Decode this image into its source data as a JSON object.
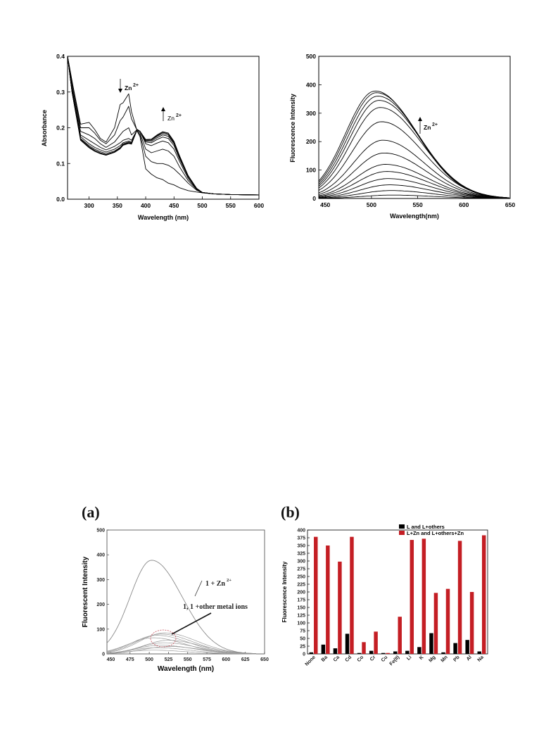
{
  "chart_data": [
    {
      "id": "absorbance",
      "type": "line",
      "xlabel": "Wavelength (nm)",
      "ylabel": "Absorbance",
      "xlim": [
        262,
        600
      ],
      "ylim": [
        0,
        0.4
      ],
      "xticks": [
        300,
        350,
        400,
        450,
        500,
        550,
        600
      ],
      "yticks": [
        0.0,
        0.1,
        0.2,
        0.3,
        0.4
      ],
      "ytick_labels": [
        "0.0",
        "0.1",
        "0.2",
        "0.3",
        "0.4"
      ],
      "annotations": [
        {
          "text": "Zn",
          "sup": "2+",
          "arrow": "down"
        },
        {
          "text": "Zn",
          "sup": "2+",
          "arrow": "up"
        }
      ],
      "series": [
        {
          "x": [
            262,
            270,
            285,
            300,
            310,
            320,
            330,
            345,
            355,
            360,
            370,
            375,
            385,
            390,
            400,
            410,
            420,
            430,
            440,
            450,
            460,
            475,
            490,
            500,
            520,
            550,
            600
          ],
          "values": [
            0.4,
            0.33,
            0.21,
            0.215,
            0.195,
            0.17,
            0.16,
            0.2,
            0.265,
            0.27,
            0.295,
            0.245,
            0.19,
            0.175,
            0.085,
            0.07,
            0.06,
            0.055,
            0.045,
            0.04,
            0.032,
            0.024,
            0.02,
            0.018,
            0.015,
            0.013,
            0.012
          ]
        },
        {
          "x": [
            262,
            270,
            285,
            300,
            310,
            320,
            330,
            345,
            355,
            360,
            370,
            375,
            385,
            390,
            400,
            410,
            420,
            430,
            440,
            450,
            460,
            475,
            490,
            500,
            520,
            550,
            600
          ],
          "values": [
            0.4,
            0.33,
            0.2,
            0.2,
            0.185,
            0.165,
            0.155,
            0.18,
            0.22,
            0.23,
            0.26,
            0.225,
            0.192,
            0.18,
            0.12,
            0.105,
            0.1,
            0.1,
            0.095,
            0.085,
            0.07,
            0.045,
            0.025,
            0.018,
            0.015,
            0.013,
            0.012
          ]
        },
        {
          "x": [
            262,
            270,
            285,
            300,
            310,
            320,
            330,
            345,
            355,
            360,
            370,
            375,
            385,
            390,
            400,
            410,
            420,
            430,
            440,
            450,
            460,
            475,
            490,
            500,
            520,
            550,
            600
          ],
          "values": [
            0.4,
            0.32,
            0.19,
            0.18,
            0.17,
            0.155,
            0.145,
            0.16,
            0.18,
            0.19,
            0.2,
            0.18,
            0.195,
            0.185,
            0.14,
            0.13,
            0.135,
            0.14,
            0.135,
            0.12,
            0.09,
            0.052,
            0.027,
            0.019,
            0.015,
            0.013,
            0.012
          ]
        },
        {
          "x": [
            262,
            270,
            285,
            300,
            310,
            320,
            330,
            345,
            355,
            360,
            370,
            375,
            385,
            390,
            400,
            410,
            420,
            430,
            440,
            450,
            460,
            475,
            490,
            500,
            520,
            550,
            600
          ],
          "values": [
            0.4,
            0.31,
            0.18,
            0.165,
            0.155,
            0.145,
            0.138,
            0.148,
            0.158,
            0.165,
            0.17,
            0.165,
            0.195,
            0.19,
            0.155,
            0.15,
            0.157,
            0.163,
            0.158,
            0.14,
            0.105,
            0.058,
            0.028,
            0.019,
            0.015,
            0.013,
            0.012
          ]
        },
        {
          "x": [
            262,
            270,
            285,
            300,
            310,
            320,
            330,
            345,
            355,
            360,
            370,
            375,
            385,
            390,
            400,
            410,
            420,
            430,
            440,
            450,
            460,
            475,
            490,
            500,
            520,
            550,
            600
          ],
          "values": [
            0.4,
            0.31,
            0.175,
            0.155,
            0.145,
            0.138,
            0.132,
            0.14,
            0.15,
            0.158,
            0.163,
            0.16,
            0.195,
            0.19,
            0.16,
            0.158,
            0.167,
            0.174,
            0.17,
            0.15,
            0.112,
            0.062,
            0.029,
            0.019,
            0.015,
            0.013,
            0.012
          ]
        },
        {
          "x": [
            262,
            270,
            285,
            300,
            310,
            320,
            330,
            345,
            355,
            360,
            370,
            375,
            385,
            390,
            400,
            410,
            420,
            430,
            440,
            450,
            460,
            475,
            490,
            500,
            520,
            550,
            600
          ],
          "values": [
            0.4,
            0.3,
            0.17,
            0.15,
            0.14,
            0.133,
            0.128,
            0.135,
            0.145,
            0.155,
            0.16,
            0.158,
            0.195,
            0.19,
            0.163,
            0.162,
            0.172,
            0.18,
            0.176,
            0.155,
            0.116,
            0.064,
            0.03,
            0.019,
            0.015,
            0.013,
            0.012
          ]
        },
        {
          "x": [
            262,
            270,
            285,
            300,
            310,
            320,
            330,
            345,
            355,
            360,
            370,
            375,
            385,
            390,
            400,
            410,
            420,
            430,
            440,
            450,
            460,
            475,
            490,
            500,
            520,
            550,
            600
          ],
          "values": [
            0.4,
            0.3,
            0.168,
            0.147,
            0.137,
            0.13,
            0.125,
            0.133,
            0.143,
            0.153,
            0.158,
            0.156,
            0.195,
            0.19,
            0.165,
            0.165,
            0.176,
            0.184,
            0.18,
            0.158,
            0.118,
            0.065,
            0.03,
            0.019,
            0.015,
            0.013,
            0.012
          ]
        },
        {
          "x": [
            262,
            270,
            285,
            300,
            310,
            320,
            330,
            345,
            355,
            360,
            370,
            375,
            385,
            390,
            400,
            410,
            420,
            430,
            440,
            450,
            460,
            475,
            490,
            500,
            520,
            550,
            600
          ],
          "values": [
            0.4,
            0.3,
            0.166,
            0.145,
            0.135,
            0.128,
            0.124,
            0.132,
            0.142,
            0.152,
            0.157,
            0.155,
            0.195,
            0.19,
            0.166,
            0.167,
            0.178,
            0.187,
            0.183,
            0.16,
            0.12,
            0.066,
            0.03,
            0.019,
            0.015,
            0.013,
            0.012
          ]
        },
        {
          "x": [
            262,
            270,
            285,
            300,
            310,
            320,
            330,
            345,
            355,
            360,
            370,
            375,
            385,
            390,
            400,
            410,
            420,
            430,
            440,
            450,
            460,
            475,
            490,
            500,
            520,
            550,
            600
          ],
          "values": [
            0.4,
            0.3,
            0.165,
            0.144,
            0.134,
            0.127,
            0.123,
            0.131,
            0.141,
            0.151,
            0.156,
            0.154,
            0.195,
            0.19,
            0.167,
            0.168,
            0.18,
            0.189,
            0.185,
            0.162,
            0.121,
            0.066,
            0.03,
            0.019,
            0.015,
            0.013,
            0.012
          ]
        }
      ]
    },
    {
      "id": "fluorescence-titration",
      "type": "line",
      "xlabel": "Wavelength(nm)",
      "ylabel": "Fluorescence Intensity",
      "xlim": [
        443,
        650
      ],
      "ylim": [
        0,
        500
      ],
      "xticks": [
        450,
        500,
        550,
        600,
        650
      ],
      "yticks": [
        0,
        100,
        200,
        300,
        400,
        500
      ],
      "annotations": [
        {
          "text": "Zn",
          "sup": "2+",
          "arrow": "up"
        }
      ],
      "series_peaks": [
        12,
        28,
        48,
        70,
        95,
        120,
        160,
        205,
        270,
        320,
        345,
        360,
        372,
        378
      ]
    },
    {
      "id": "panel-a",
      "type": "line",
      "panel_label": "(a)",
      "xlabel": "Wavelength (nm)",
      "ylabel": "Fluorescent Intensity",
      "xlim": [
        445,
        650
      ],
      "ylim": [
        0,
        500
      ],
      "xticks": [
        450,
        475,
        500,
        525,
        550,
        575,
        600,
        625,
        650
      ],
      "yticks": [
        0,
        100,
        200,
        300,
        400,
        500
      ],
      "annotations": [
        {
          "text": "1 + Zn",
          "sup": "2+"
        },
        {
          "text": "1, 1 +other metal ions"
        }
      ],
      "zn_peak": 378,
      "other_peaks": [
        15,
        25,
        35,
        45,
        55,
        65,
        75,
        80,
        85,
        30
      ]
    },
    {
      "id": "panel-b",
      "type": "bar",
      "panel_label": "(b)",
      "xlabel": "",
      "ylabel": "Fluorescence Intensity",
      "ylim": [
        0,
        400
      ],
      "yticks": [
        0,
        25,
        50,
        75,
        100,
        125,
        150,
        175,
        200,
        225,
        250,
        275,
        300,
        325,
        350,
        375,
        400
      ],
      "categories": [
        "None",
        "Ba",
        "Ca",
        "Cd",
        "Co",
        "Cr",
        "Cu",
        "Fe(II)",
        "Li",
        "K",
        "Mg",
        "Mn",
        "Pb",
        "Al",
        "Na"
      ],
      "series": [
        {
          "name": "L and L+others",
          "color": "#000000",
          "values": [
            5,
            30,
            18,
            65,
            3,
            10,
            3,
            8,
            10,
            22,
            67,
            5,
            35,
            45,
            8
          ]
        },
        {
          "name": "L+Zn and L+others+Zn",
          "color": "#c41e24",
          "values": [
            378,
            350,
            298,
            378,
            38,
            72,
            3,
            120,
            368,
            372,
            197,
            210,
            365,
            200,
            383
          ]
        }
      ],
      "legend_position": "top-right"
    }
  ]
}
